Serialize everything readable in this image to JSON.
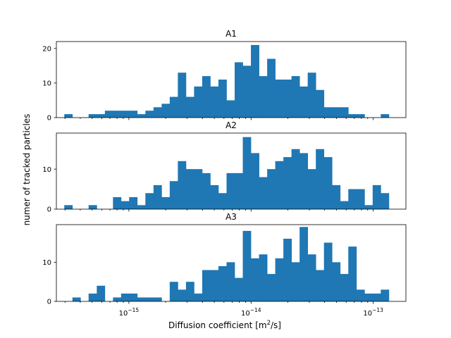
{
  "chart_data": {
    "type": "bar",
    "xscale": "log",
    "xlim": [
      2.55e-16,
      1.85e-13
    ],
    "xlabel": "Diffusion coefficient [m²/s]",
    "ylabel": "numer of tracked particles",
    "grid": false,
    "bar_color": "#1f77b4",
    "bin_edges": [
      2.96e-16,
      3.45e-16,
      4.02e-16,
      4.68e-16,
      5.46e-16,
      6.36e-16,
      7.41e-16,
      8.63e-16,
      1.005e-15,
      1.171e-15,
      1.365e-15,
      1.59e-15,
      1.853e-15,
      2.159e-15,
      2.516e-15,
      2.932e-15,
      3.416e-15,
      3.981e-15,
      4.639e-15,
      5.406e-15,
      6.3e-15,
      7.341e-15,
      8.554e-15,
      9.968e-15,
      1.162e-14,
      1.354e-14,
      1.577e-14,
      1.838e-14,
      2.142e-14,
      2.496e-14,
      2.908e-14,
      3.389e-14,
      3.949e-14,
      4.602e-14,
      5.363e-14,
      6.249e-14,
      7.282e-14,
      8.486e-14,
      9.889e-14,
      1.152e-13,
      1.343e-13
    ],
    "panels": [
      {
        "title": "A1",
        "ylim": [
          0,
          22
        ],
        "yticks": [
          0,
          10,
          20
        ],
        "counts": [
          1,
          0,
          0,
          1,
          1,
          2,
          2,
          2,
          2,
          1,
          2,
          3,
          4,
          6,
          13,
          6,
          9,
          12,
          9,
          11,
          5,
          16,
          15,
          21,
          12,
          17,
          11,
          11,
          12,
          9,
          13,
          8,
          3,
          3,
          3,
          1,
          1,
          0,
          0,
          1
        ]
      },
      {
        "title": "A2",
        "ylim": [
          0,
          19
        ],
        "yticks": [
          0,
          10
        ],
        "counts": [
          1,
          0,
          0,
          1,
          0,
          0,
          3,
          2,
          3,
          1,
          4,
          6,
          3,
          7,
          12,
          10,
          10,
          9,
          6,
          4,
          9,
          9,
          18,
          14,
          8,
          10,
          12,
          13,
          15,
          14,
          10,
          15,
          13,
          6,
          2,
          5,
          5,
          1,
          6,
          4
        ]
      },
      {
        "title": "A3",
        "ylim": [
          0,
          19.6
        ],
        "yticks": [
          0,
          10
        ],
        "counts": [
          0,
          1,
          0,
          2,
          4,
          0,
          1,
          2,
          2,
          1,
          1,
          1,
          0,
          5,
          3,
          5,
          2,
          8,
          8,
          9,
          10,
          6,
          18,
          11,
          12,
          7,
          11,
          16,
          10,
          19,
          12,
          8,
          15,
          10,
          7,
          14,
          3,
          2,
          2,
          3
        ]
      }
    ],
    "xticks": [
      {
        "value": 1e-15,
        "mantissa": "10",
        "exp": "−15"
      },
      {
        "value": 1e-14,
        "mantissa": "10",
        "exp": "−14"
      },
      {
        "value": 1e-13,
        "mantissa": "10",
        "exp": "−13"
      }
    ]
  }
}
